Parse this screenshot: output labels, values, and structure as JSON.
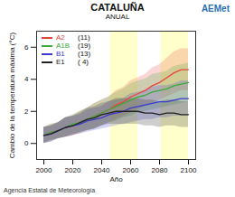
{
  "chart_data": {
    "type": "line",
    "title": "CATALUÑA",
    "subtitle": "ANUAL",
    "logo": "AEMet",
    "footer": "Agencia Estatal de Meteorología",
    "x_label": "Año",
    "y_label": "Cambio de la temperatura máxima (°C)",
    "x": [
      2000,
      2005,
      2010,
      2015,
      2020,
      2025,
      2030,
      2035,
      2040,
      2045,
      2050,
      2055,
      2060,
      2065,
      2070,
      2075,
      2080,
      2085,
      2090,
      2095,
      2100
    ],
    "xlim": [
      1995,
      2105
    ],
    "xticks": [
      2000,
      2020,
      2040,
      2060,
      2080,
      2100
    ],
    "ylim": [
      -1,
      7
    ],
    "yticks": [
      0,
      2,
      4,
      6
    ],
    "grid": false,
    "legend": "top-left",
    "highlight_periods": [
      [
        2046,
        2065
      ],
      [
        2081,
        2100
      ]
    ],
    "series": [
      {
        "name": "A2",
        "count_label": "(11)",
        "color": "#e8433a",
        "values": [
          0.5,
          0.7,
          0.8,
          1.0,
          1.1,
          1.3,
          1.5,
          1.7,
          1.9,
          2.1,
          2.4,
          2.6,
          2.9,
          3.1,
          3.3,
          3.6,
          3.8,
          4.1,
          4.4,
          4.6,
          4.6
        ],
        "band_low": [
          0.0,
          0.2,
          0.3,
          0.4,
          0.5,
          0.6,
          0.8,
          0.9,
          1.1,
          1.3,
          1.5,
          1.7,
          1.9,
          2.1,
          2.3,
          2.5,
          2.7,
          2.9,
          3.1,
          3.3,
          3.3
        ],
        "band_high": [
          1.0,
          1.2,
          1.3,
          1.6,
          1.7,
          2.0,
          2.2,
          2.5,
          2.7,
          2.9,
          3.3,
          3.5,
          3.9,
          4.1,
          4.3,
          4.7,
          4.9,
          5.3,
          5.7,
          5.9,
          5.9
        ]
      },
      {
        "name": "A1B",
        "count_label": "(19)",
        "color": "#3aaa3a",
        "values": [
          0.5,
          0.7,
          0.8,
          1.0,
          1.2,
          1.3,
          1.5,
          1.7,
          1.9,
          2.1,
          2.3,
          2.5,
          2.7,
          2.9,
          3.0,
          3.2,
          3.3,
          3.4,
          3.6,
          3.7,
          3.8
        ],
        "band_low": [
          0.0,
          0.2,
          0.3,
          0.4,
          0.6,
          0.6,
          0.8,
          0.9,
          1.1,
          1.3,
          1.4,
          1.6,
          1.7,
          1.9,
          2.0,
          2.1,
          2.2,
          2.3,
          2.4,
          2.5,
          2.6
        ],
        "band_high": [
          1.0,
          1.2,
          1.3,
          1.6,
          1.8,
          2.0,
          2.2,
          2.5,
          2.7,
          2.9,
          3.2,
          3.4,
          3.7,
          3.9,
          4.0,
          4.3,
          4.4,
          4.5,
          4.8,
          4.9,
          5.0
        ]
      },
      {
        "name": "B1",
        "count_label": "(13)",
        "color": "#3a3ad0",
        "values": [
          0.5,
          0.6,
          0.8,
          1.0,
          1.1,
          1.2,
          1.4,
          1.5,
          1.6,
          1.8,
          1.9,
          2.0,
          2.2,
          2.3,
          2.4,
          2.5,
          2.6,
          2.6,
          2.7,
          2.8,
          2.8
        ],
        "band_low": [
          0.0,
          0.1,
          0.3,
          0.4,
          0.5,
          0.6,
          0.7,
          0.8,
          0.9,
          1.0,
          1.1,
          1.2,
          1.3,
          1.4,
          1.5,
          1.5,
          1.6,
          1.6,
          1.7,
          1.7,
          1.7
        ],
        "band_high": [
          1.0,
          1.1,
          1.3,
          1.6,
          1.7,
          1.8,
          2.1,
          2.2,
          2.3,
          2.6,
          2.7,
          2.8,
          3.1,
          3.2,
          3.3,
          3.5,
          3.6,
          3.6,
          3.7,
          3.9,
          3.9
        ]
      },
      {
        "name": "E1",
        "count_label": "( 4)",
        "color": "#222222",
        "values": [
          0.5,
          0.6,
          0.8,
          1.0,
          1.1,
          1.3,
          1.5,
          1.6,
          1.8,
          1.9,
          2.0,
          2.0,
          2.0,
          2.0,
          1.9,
          1.9,
          1.8,
          1.9,
          1.9,
          1.8,
          1.8
        ],
        "band_low": [
          0.0,
          0.1,
          0.3,
          0.4,
          0.5,
          0.7,
          0.8,
          0.9,
          1.1,
          1.2,
          1.2,
          1.2,
          1.2,
          1.2,
          1.1,
          1.1,
          1.0,
          1.1,
          1.1,
          1.0,
          1.0
        ],
        "band_high": [
          1.0,
          1.1,
          1.3,
          1.6,
          1.7,
          1.9,
          2.2,
          2.3,
          2.5,
          2.6,
          2.8,
          2.8,
          2.8,
          2.8,
          2.7,
          2.7,
          2.6,
          2.7,
          2.7,
          2.6,
          2.6
        ]
      }
    ]
  }
}
